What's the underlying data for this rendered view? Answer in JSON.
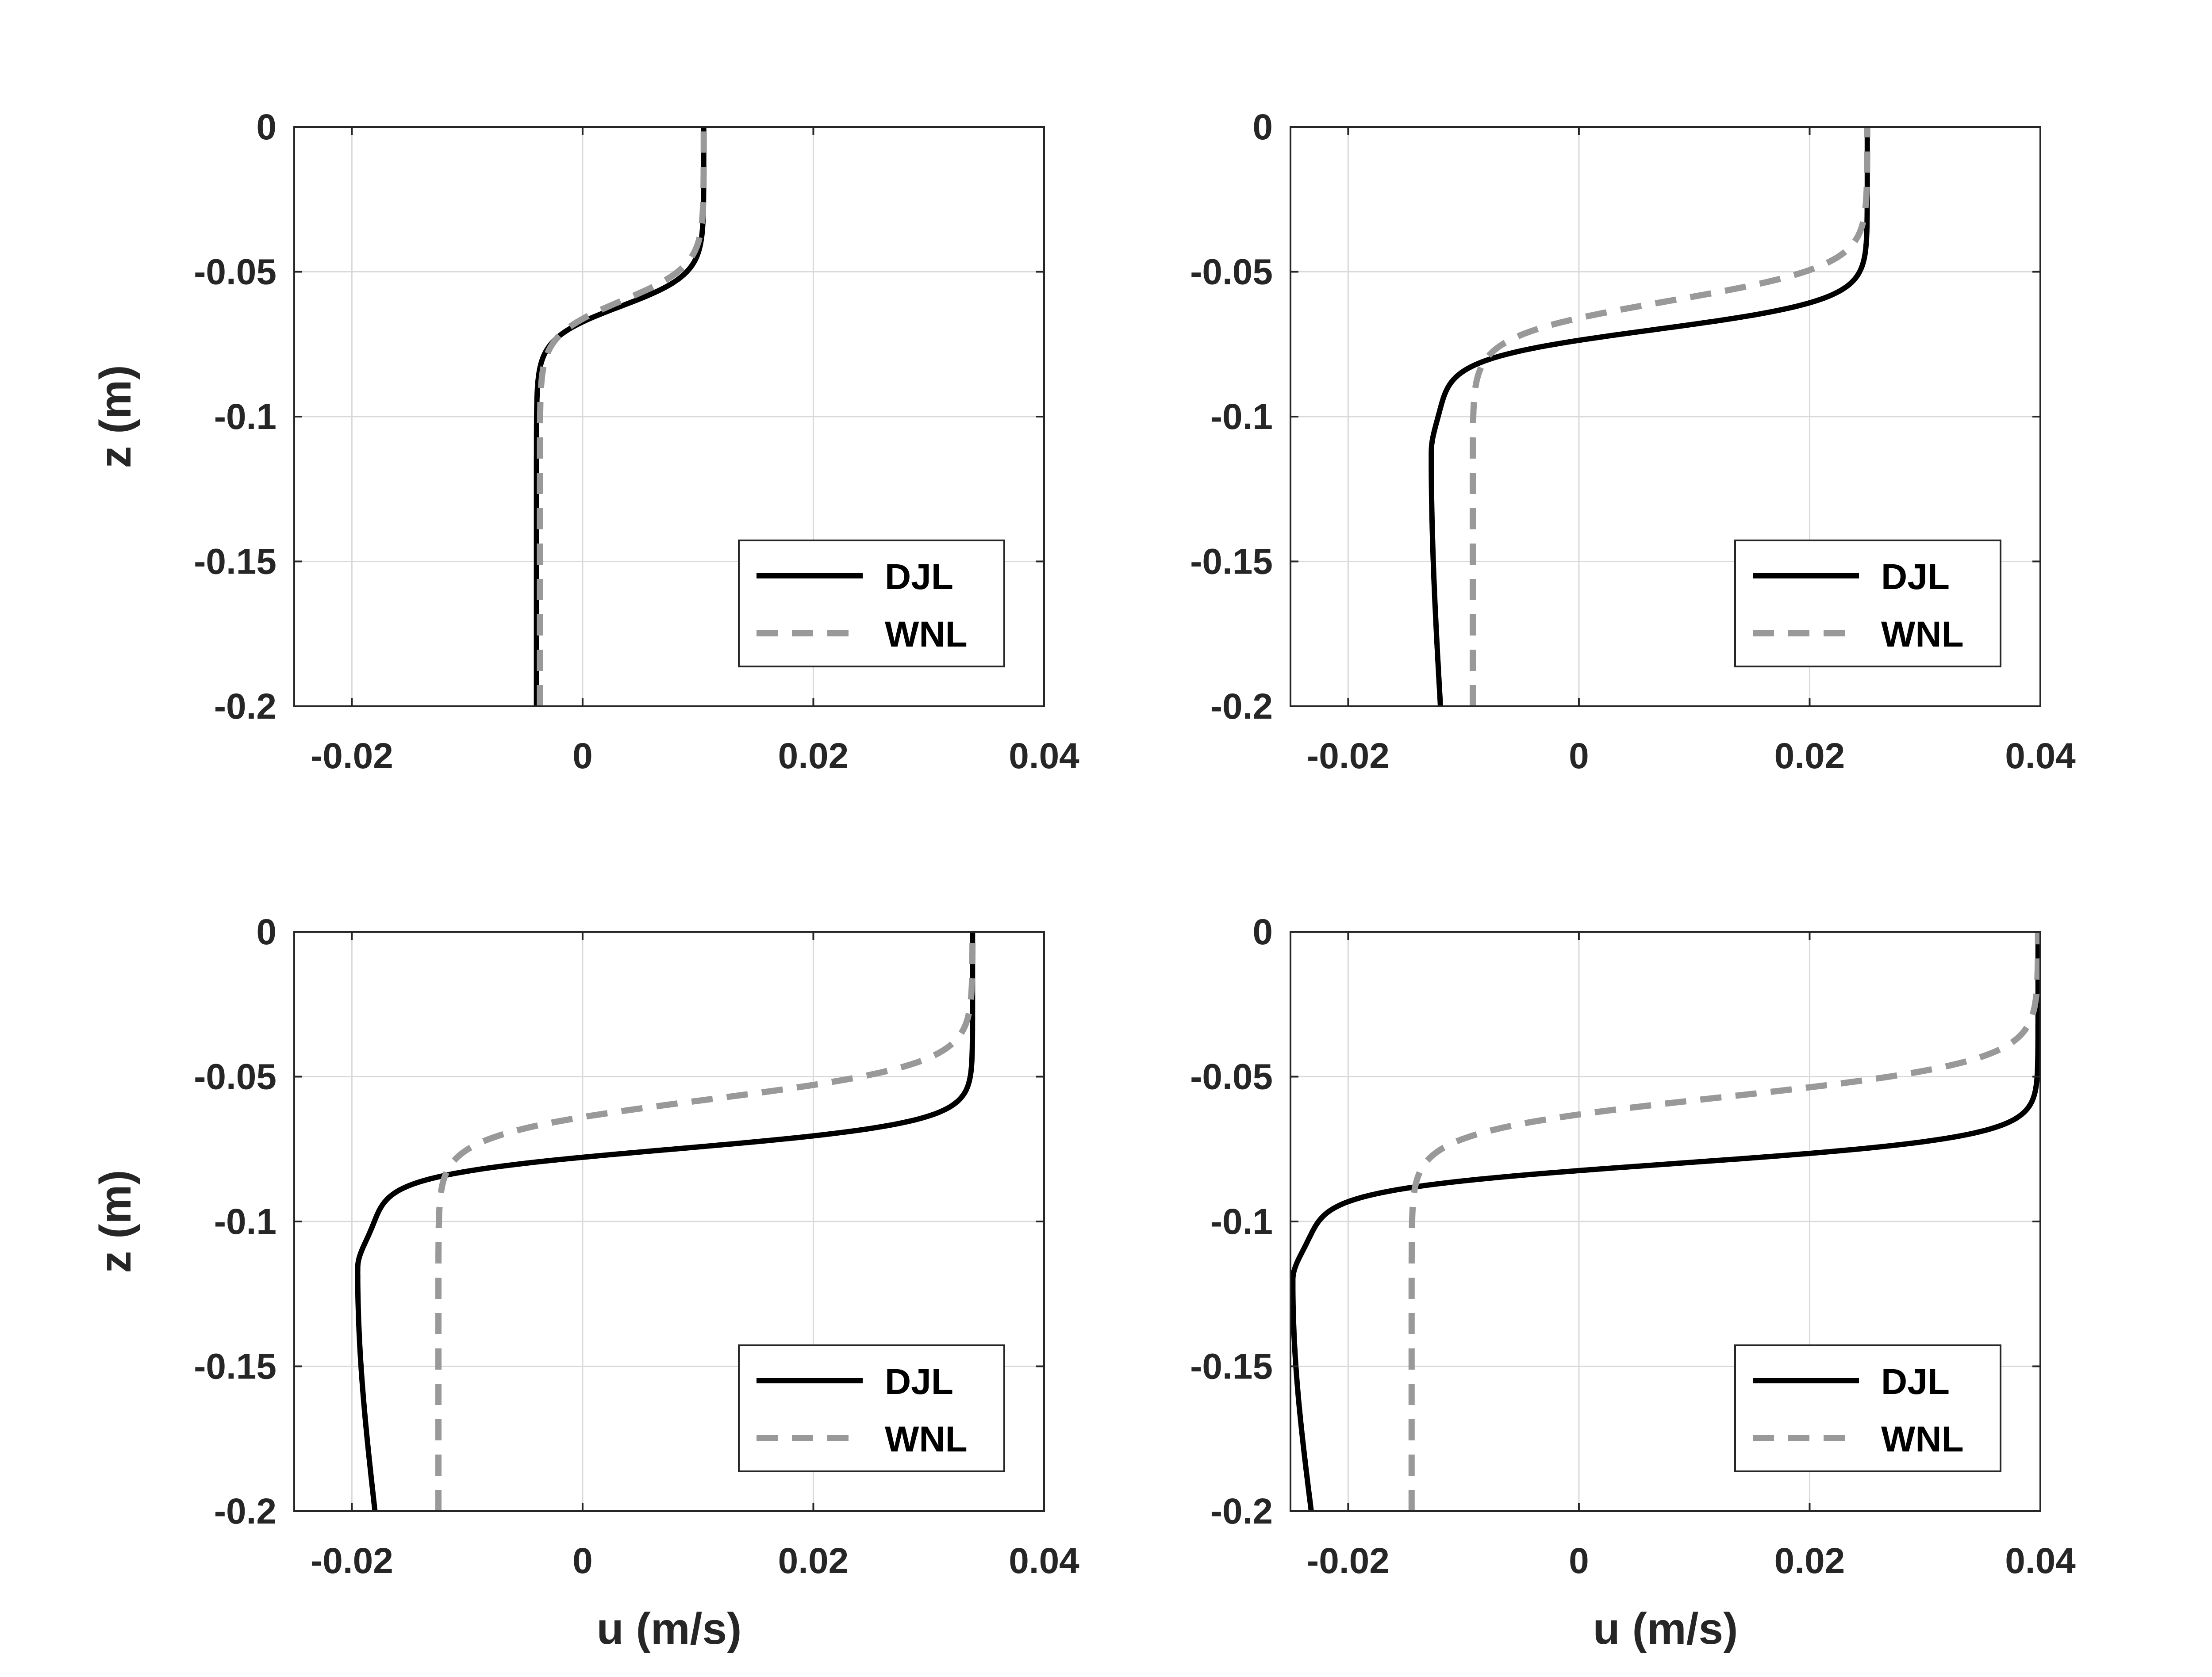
{
  "chart_data": [
    {
      "type": "line",
      "xlabel": "",
      "ylabel": "z (m)",
      "xlim": [
        -0.025,
        0.04
      ],
      "ylim": [
        -0.2,
        0
      ],
      "xticks": [
        "-0.02",
        "0",
        "0.02",
        "0.04"
      ],
      "yticks": [
        "0",
        "-0.05",
        "-0.1",
        "-0.15",
        "-0.2"
      ],
      "grid": true,
      "legend_position": "bottom-right",
      "series": [
        {
          "name": "DJL",
          "color": "#000000",
          "style": "solid",
          "u_top": 0.0105,
          "u_bottom": -0.004,
          "u_min": -0.004,
          "u_at_min": -0.004,
          "z_min": -0.12,
          "z_mid": -0.062,
          "width": 0.011
        },
        {
          "name": "WNL",
          "color": "#999999",
          "style": "dashed",
          "u_top": 0.0105,
          "u_bottom": -0.0037,
          "u_min": -0.0037,
          "u_at_min": -0.0037,
          "z_min": -0.12,
          "z_mid": -0.06,
          "width": 0.012
        }
      ]
    },
    {
      "type": "line",
      "xlabel": "",
      "ylabel": "",
      "xlim": [
        -0.025,
        0.04
      ],
      "ylim": [
        -0.2,
        0
      ],
      "xticks": [
        "-0.02",
        "0",
        "0.02",
        "0.04"
      ],
      "yticks": [
        "0",
        "-0.05",
        "-0.1",
        "-0.15",
        "-0.2"
      ],
      "grid": true,
      "legend_position": "bottom-right",
      "series": [
        {
          "name": "DJL",
          "color": "#000000",
          "style": "solid",
          "u_top": 0.025,
          "u_bottom": -0.012,
          "u_min": -0.0128,
          "u_at_min": -0.0128,
          "z_min": -0.112,
          "z_mid": -0.07,
          "width": 0.01
        },
        {
          "name": "WNL",
          "color": "#999999",
          "style": "dashed",
          "u_top": 0.025,
          "u_bottom": -0.0092,
          "u_min": -0.0092,
          "u_at_min": -0.0092,
          "z_min": -0.12,
          "z_mid": -0.06,
          "width": 0.012
        }
      ]
    },
    {
      "type": "line",
      "xlabel": "u (m/s)",
      "ylabel": "z (m)",
      "xlim": [
        -0.025,
        0.04
      ],
      "ylim": [
        -0.2,
        0
      ],
      "xticks": [
        "-0.02",
        "0",
        "0.02",
        "0.04"
      ],
      "yticks": [
        "0",
        "-0.05",
        "-0.1",
        "-0.15",
        "-0.2"
      ],
      "grid": true,
      "legend_position": "bottom-right",
      "series": [
        {
          "name": "DJL",
          "color": "#000000",
          "style": "solid",
          "u_top": 0.0338,
          "u_bottom": -0.018,
          "u_min": -0.0195,
          "u_at_min": -0.0195,
          "z_min": -0.116,
          "z_mid": -0.075,
          "width": 0.009
        },
        {
          "name": "WNL",
          "color": "#999999",
          "style": "dashed",
          "u_top": 0.0338,
          "u_bottom": -0.0125,
          "u_min": -0.0125,
          "u_at_min": -0.0125,
          "z_min": -0.12,
          "z_mid": -0.058,
          "width": 0.012
        }
      ]
    },
    {
      "type": "line",
      "xlabel": "u (m/s)",
      "ylabel": "",
      "xlim": [
        -0.025,
        0.04
      ],
      "ylim": [
        -0.2,
        0
      ],
      "xticks": [
        "-0.02",
        "0",
        "0.02",
        "0.04"
      ],
      "yticks": [
        "0",
        "-0.05",
        "-0.1",
        "-0.15",
        "-0.2"
      ],
      "grid": true,
      "legend_position": "bottom-right",
      "series": [
        {
          "name": "DJL",
          "color": "#000000",
          "style": "solid",
          "u_top": 0.0398,
          "u_bottom": -0.0232,
          "u_min": -0.0248,
          "u_at_min": -0.0248,
          "z_min": -0.12,
          "z_mid": -0.08,
          "width": 0.009
        },
        {
          "name": "WNL",
          "color": "#999999",
          "style": "dashed",
          "u_top": 0.0398,
          "u_bottom": -0.0145,
          "u_min": -0.0145,
          "u_at_min": -0.0145,
          "z_min": -0.12,
          "z_mid": -0.057,
          "width": 0.012
        }
      ]
    }
  ]
}
